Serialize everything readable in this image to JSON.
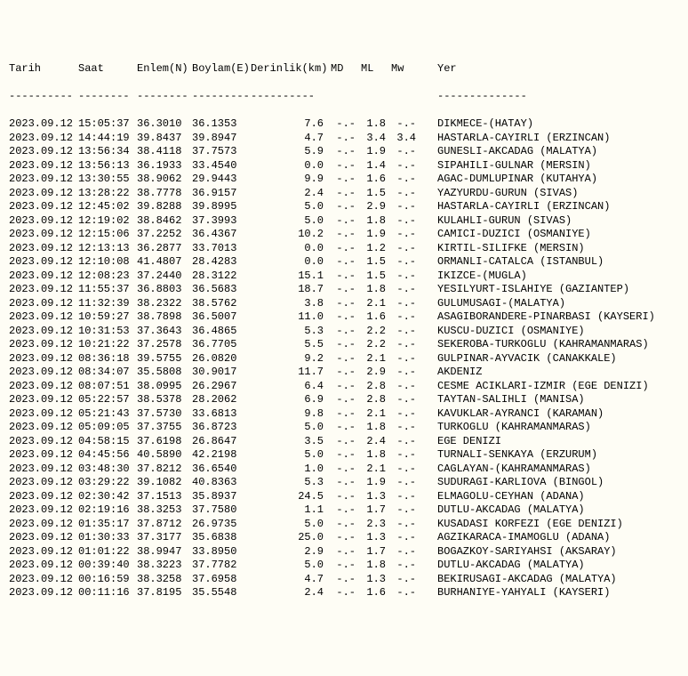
{
  "background_color": "#fefdf5",
  "text_color": "#000000",
  "font_family": "Courier New",
  "font_size_pt": 9,
  "columns": {
    "tarih": {
      "label": "Tarih",
      "sep": "----------"
    },
    "saat": {
      "label": "Saat",
      "sep": "--------"
    },
    "enlem": {
      "label": "Enlem(N)",
      "sep": "--------"
    },
    "boylam": {
      "label": "Boylam(E)",
      "sep": "---------"
    },
    "derin": {
      "label": "Derinlik(km)",
      "sep": "----------"
    },
    "md": {
      "label": "MD",
      "sep": ""
    },
    "ml": {
      "label": "ML",
      "sep": ""
    },
    "mw": {
      "label": "Mw",
      "sep": ""
    },
    "yer": {
      "label": "Yer",
      "sep": "--------------"
    }
  },
  "rows": [
    {
      "tarih": "2023.09.12",
      "saat": "15:05:37",
      "enlem": "36.3010",
      "boylam": "36.1353",
      "derin": "7.6",
      "md": "-.-",
      "ml": "1.8",
      "mw": "-.-",
      "yer": "DIKMECE-(HATAY)"
    },
    {
      "tarih": "2023.09.12",
      "saat": "14:44:19",
      "enlem": "39.8437",
      "boylam": "39.8947",
      "derin": "4.7",
      "md": "-.-",
      "ml": "3.4",
      "mw": "3.4",
      "yer": "HASTARLA-CAYIRLI (ERZINCAN)"
    },
    {
      "tarih": "2023.09.12",
      "saat": "13:56:34",
      "enlem": "38.4118",
      "boylam": "37.7573",
      "derin": "5.9",
      "md": "-.-",
      "ml": "1.9",
      "mw": "-.-",
      "yer": "GUNESLI-AKCADAG (MALATYA)"
    },
    {
      "tarih": "2023.09.12",
      "saat": "13:56:13",
      "enlem": "36.1933",
      "boylam": "33.4540",
      "derin": "0.0",
      "md": "-.-",
      "ml": "1.4",
      "mw": "-.-",
      "yer": "SIPAHILI-GULNAR (MERSIN)"
    },
    {
      "tarih": "2023.09.12",
      "saat": "13:30:55",
      "enlem": "38.9062",
      "boylam": "29.9443",
      "derin": "9.9",
      "md": "-.-",
      "ml": "1.6",
      "mw": "-.-",
      "yer": "AGAC-DUMLUPINAR (KUTAHYA)"
    },
    {
      "tarih": "2023.09.12",
      "saat": "13:28:22",
      "enlem": "38.7778",
      "boylam": "36.9157",
      "derin": "2.4",
      "md": "-.-",
      "ml": "1.5",
      "mw": "-.-",
      "yer": "YAZYURDU-GURUN (SIVAS)"
    },
    {
      "tarih": "2023.09.12",
      "saat": "12:45:02",
      "enlem": "39.8288",
      "boylam": "39.8995",
      "derin": "5.0",
      "md": "-.-",
      "ml": "2.9",
      "mw": "-.-",
      "yer": "HASTARLA-CAYIRLI (ERZINCAN)"
    },
    {
      "tarih": "2023.09.12",
      "saat": "12:19:02",
      "enlem": "38.8462",
      "boylam": "37.3993",
      "derin": "5.0",
      "md": "-.-",
      "ml": "1.8",
      "mw": "-.-",
      "yer": "KULAHLI-GURUN (SIVAS)"
    },
    {
      "tarih": "2023.09.12",
      "saat": "12:15:06",
      "enlem": "37.2252",
      "boylam": "36.4367",
      "derin": "10.2",
      "md": "-.-",
      "ml": "1.9",
      "mw": "-.-",
      "yer": "CAMICI-DUZICI (OSMANIYE)"
    },
    {
      "tarih": "2023.09.12",
      "saat": "12:13:13",
      "enlem": "36.2877",
      "boylam": "33.7013",
      "derin": "0.0",
      "md": "-.-",
      "ml": "1.2",
      "mw": "-.-",
      "yer": "KIRTIL-SILIFKE (MERSIN)"
    },
    {
      "tarih": "2023.09.12",
      "saat": "12:10:08",
      "enlem": "41.4807",
      "boylam": "28.4283",
      "derin": "0.0",
      "md": "-.-",
      "ml": "1.5",
      "mw": "-.-",
      "yer": "ORMANLI-CATALCA (ISTANBUL)"
    },
    {
      "tarih": "2023.09.12",
      "saat": "12:08:23",
      "enlem": "37.2440",
      "boylam": "28.3122",
      "derin": "15.1",
      "md": "-.-",
      "ml": "1.5",
      "mw": "-.-",
      "yer": "IKIZCE-(MUGLA)"
    },
    {
      "tarih": "2023.09.12",
      "saat": "11:55:37",
      "enlem": "36.8803",
      "boylam": "36.5683",
      "derin": "18.7",
      "md": "-.-",
      "ml": "1.8",
      "mw": "-.-",
      "yer": "YESILYURT-ISLAHIYE (GAZIANTEP)"
    },
    {
      "tarih": "2023.09.12",
      "saat": "11:32:39",
      "enlem": "38.2322",
      "boylam": "38.5762",
      "derin": "3.8",
      "md": "-.-",
      "ml": "2.1",
      "mw": "-.-",
      "yer": "GULUMUSAGI-(MALATYA)"
    },
    {
      "tarih": "2023.09.12",
      "saat": "10:59:27",
      "enlem": "38.7898",
      "boylam": "36.5007",
      "derin": "11.0",
      "md": "-.-",
      "ml": "1.6",
      "mw": "-.-",
      "yer": "ASAGIBORANDERE-PINARBASI (KAYSERI)"
    },
    {
      "tarih": "2023.09.12",
      "saat": "10:31:53",
      "enlem": "37.3643",
      "boylam": "36.4865",
      "derin": "5.3",
      "md": "-.-",
      "ml": "2.2",
      "mw": "-.-",
      "yer": "KUSCU-DUZICI (OSMANIYE)"
    },
    {
      "tarih": "2023.09.12",
      "saat": "10:21:22",
      "enlem": "37.2578",
      "boylam": "36.7705",
      "derin": "5.5",
      "md": "-.-",
      "ml": "2.2",
      "mw": "-.-",
      "yer": "SEKEROBA-TURKOGLU (KAHRAMANMARAS)"
    },
    {
      "tarih": "2023.09.12",
      "saat": "08:36:18",
      "enlem": "39.5755",
      "boylam": "26.0820",
      "derin": "9.2",
      "md": "-.-",
      "ml": "2.1",
      "mw": "-.-",
      "yer": "GULPINAR-AYVACIK (CANAKKALE)"
    },
    {
      "tarih": "2023.09.12",
      "saat": "08:34:07",
      "enlem": "35.5808",
      "boylam": "30.9017",
      "derin": "11.7",
      "md": "-.-",
      "ml": "2.9",
      "mw": "-.-",
      "yer": "AKDENIZ"
    },
    {
      "tarih": "2023.09.12",
      "saat": "08:07:51",
      "enlem": "38.0995",
      "boylam": "26.2967",
      "derin": "6.4",
      "md": "-.-",
      "ml": "2.8",
      "mw": "-.-",
      "yer": "CESME ACIKLARI-IZMIR (EGE DENIZI)"
    },
    {
      "tarih": "2023.09.12",
      "saat": "05:22:57",
      "enlem": "38.5378",
      "boylam": "28.2062",
      "derin": "6.9",
      "md": "-.-",
      "ml": "2.8",
      "mw": "-.-",
      "yer": "TAYTAN-SALIHLI (MANISA)"
    },
    {
      "tarih": "2023.09.12",
      "saat": "05:21:43",
      "enlem": "37.5730",
      "boylam": "33.6813",
      "derin": "9.8",
      "md": "-.-",
      "ml": "2.1",
      "mw": "-.-",
      "yer": "KAVUKLAR-AYRANCI (KARAMAN)"
    },
    {
      "tarih": "2023.09.12",
      "saat": "05:09:05",
      "enlem": "37.3755",
      "boylam": "36.8723",
      "derin": "5.0",
      "md": "-.-",
      "ml": "1.8",
      "mw": "-.-",
      "yer": "TURKOGLU (KAHRAMANMARAS)"
    },
    {
      "tarih": "2023.09.12",
      "saat": "04:58:15",
      "enlem": "37.6198",
      "boylam": "26.8647",
      "derin": "3.5",
      "md": "-.-",
      "ml": "2.4",
      "mw": "-.-",
      "yer": "EGE DENIZI"
    },
    {
      "tarih": "2023.09.12",
      "saat": "04:45:56",
      "enlem": "40.5890",
      "boylam": "42.2198",
      "derin": "5.0",
      "md": "-.-",
      "ml": "1.8",
      "mw": "-.-",
      "yer": "TURNALI-SENKAYA (ERZURUM)"
    },
    {
      "tarih": "2023.09.12",
      "saat": "03:48:30",
      "enlem": "37.8212",
      "boylam": "36.6540",
      "derin": "1.0",
      "md": "-.-",
      "ml": "2.1",
      "mw": "-.-",
      "yer": "CAGLAYAN-(KAHRAMANMARAS)"
    },
    {
      "tarih": "2023.09.12",
      "saat": "03:29:22",
      "enlem": "39.1082",
      "boylam": "40.8363",
      "derin": "5.3",
      "md": "-.-",
      "ml": "1.9",
      "mw": "-.-",
      "yer": "SUDURAGI-KARLIOVA (BINGOL)"
    },
    {
      "tarih": "2023.09.12",
      "saat": "02:30:42",
      "enlem": "37.1513",
      "boylam": "35.8937",
      "derin": "24.5",
      "md": "-.-",
      "ml": "1.3",
      "mw": "-.-",
      "yer": "ELMAGOLU-CEYHAN (ADANA)"
    },
    {
      "tarih": "2023.09.12",
      "saat": "02:19:16",
      "enlem": "38.3253",
      "boylam": "37.7580",
      "derin": "1.1",
      "md": "-.-",
      "ml": "1.7",
      "mw": "-.-",
      "yer": "DUTLU-AKCADAG (MALATYA)"
    },
    {
      "tarih": "2023.09.12",
      "saat": "01:35:17",
      "enlem": "37.8712",
      "boylam": "26.9735",
      "derin": "5.0",
      "md": "-.-",
      "ml": "2.3",
      "mw": "-.-",
      "yer": "KUSADASI KORFEZI (EGE DENIZI)"
    },
    {
      "tarih": "2023.09.12",
      "saat": "01:30:33",
      "enlem": "37.3177",
      "boylam": "35.6838",
      "derin": "25.0",
      "md": "-.-",
      "ml": "1.3",
      "mw": "-.-",
      "yer": "AGZIKARACA-IMAMOGLU (ADANA)"
    },
    {
      "tarih": "2023.09.12",
      "saat": "01:01:22",
      "enlem": "38.9947",
      "boylam": "33.8950",
      "derin": "2.9",
      "md": "-.-",
      "ml": "1.7",
      "mw": "-.-",
      "yer": "BOGAZKOY-SARIYAHSI (AKSARAY)"
    },
    {
      "tarih": "2023.09.12",
      "saat": "00:39:40",
      "enlem": "38.3223",
      "boylam": "37.7782",
      "derin": "5.0",
      "md": "-.-",
      "ml": "1.8",
      "mw": "-.-",
      "yer": "DUTLU-AKCADAG (MALATYA)"
    },
    {
      "tarih": "2023.09.12",
      "saat": "00:16:59",
      "enlem": "38.3258",
      "boylam": "37.6958",
      "derin": "4.7",
      "md": "-.-",
      "ml": "1.3",
      "mw": "-.-",
      "yer": "BEKIRUSAGI-AKCADAG (MALATYA)"
    },
    {
      "tarih": "2023.09.12",
      "saat": "00:11:16",
      "enlem": "37.8195",
      "boylam": "35.5548",
      "derin": "2.4",
      "md": "-.-",
      "ml": "1.6",
      "mw": "-.-",
      "yer": "BURHANIYE-YAHYALI (KAYSERI)"
    }
  ]
}
